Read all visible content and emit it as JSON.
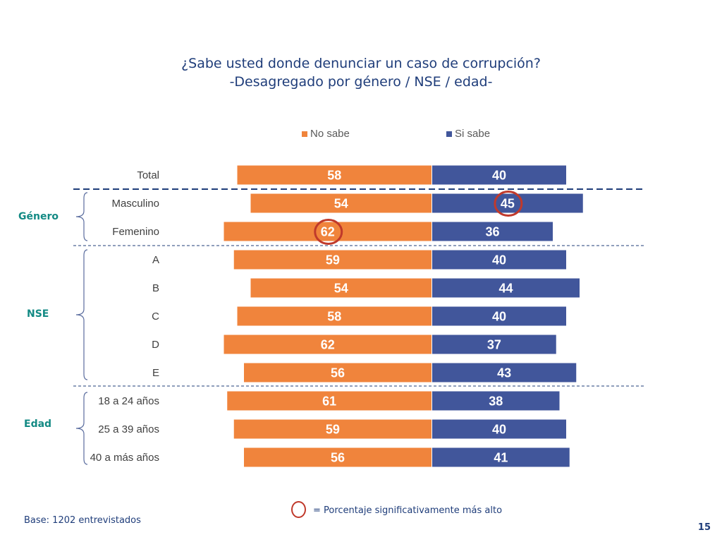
{
  "title": {
    "line1": "¿Sabe usted donde denunciar un caso de corrupción?",
    "line2": "-Desagregado por género / NSE / edad-"
  },
  "colors": {
    "no_sabe": "#f0843c",
    "si_sabe": "#41569b",
    "highlight": "#c0392b",
    "group_label": "#138a84"
  },
  "legend": {
    "no_sabe": "No sabe",
    "si_sabe": "Si sabe"
  },
  "groups": {
    "genero": "Género",
    "nse": "NSE",
    "edad": "Edad"
  },
  "chart_data": {
    "type": "bar",
    "orientation": "horizontal-diverging",
    "title": "¿Sabe usted donde denunciar un caso de corrupción? -Desagregado por género / NSE / edad-",
    "categories": [
      "Total",
      "Masculino",
      "Femenino",
      "A",
      "B",
      "C",
      "D",
      "E",
      "18 a 24 años",
      "25 a 39 años",
      "40 a más años"
    ],
    "series": [
      {
        "name": "No sabe",
        "values": [
          58,
          54,
          62,
          59,
          54,
          58,
          62,
          56,
          61,
          59,
          56
        ]
      },
      {
        "name": "Si sabe",
        "values": [
          40,
          45,
          36,
          40,
          44,
          40,
          37,
          43,
          38,
          40,
          41
        ]
      }
    ],
    "highlighted": [
      {
        "category": "Masculino",
        "series": "Si sabe"
      },
      {
        "category": "Femenino",
        "series": "No sabe"
      }
    ],
    "legend_position": "top"
  },
  "footer": {
    "base": "Base: 1202 entrevistados",
    "note": "= Porcentaje significativamente más alto",
    "page_number": "15"
  }
}
